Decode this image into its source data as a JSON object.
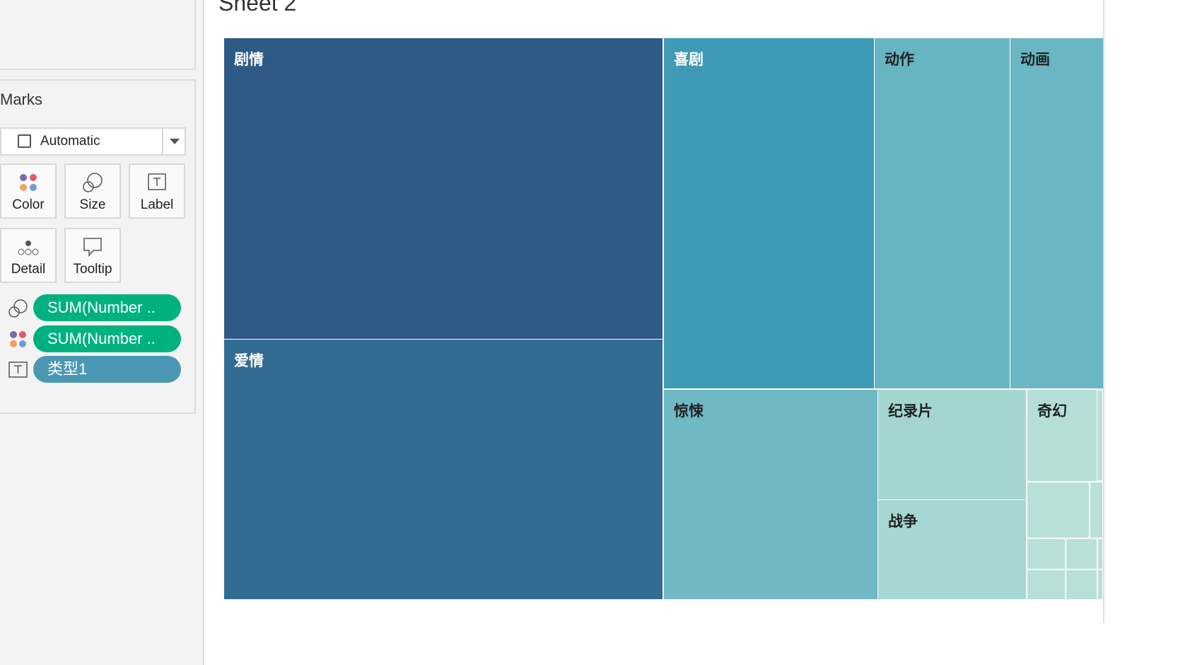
{
  "sheet": {
    "title": "Sheet 2"
  },
  "marks": {
    "title": "Marks",
    "mark_type": "Automatic",
    "buttons": [
      "Color",
      "Size",
      "Label",
      "Detail",
      "Tooltip"
    ],
    "pills": [
      "SUM(Number ..",
      "SUM(Number ..",
      "类型1"
    ]
  },
  "treemap": {
    "tiles": [
      {
        "label": "剧情",
        "color": "#2e5a86"
      },
      {
        "label": "爱情",
        "color": "#326c93"
      },
      {
        "label": "喜剧",
        "color": "#3f9ab6"
      },
      {
        "label": "动作",
        "color": "#68b5c2"
      },
      {
        "label": "动画",
        "color": "#6ab6c3"
      },
      {
        "label": "惊悚",
        "color": "#6fb8c4"
      },
      {
        "label": "纪录片",
        "color": "#a3d6d1"
      },
      {
        "label": "战争",
        "color": "#a6d7d2"
      },
      {
        "label": "奇幻",
        "color": "#b5dfd6"
      }
    ]
  }
}
